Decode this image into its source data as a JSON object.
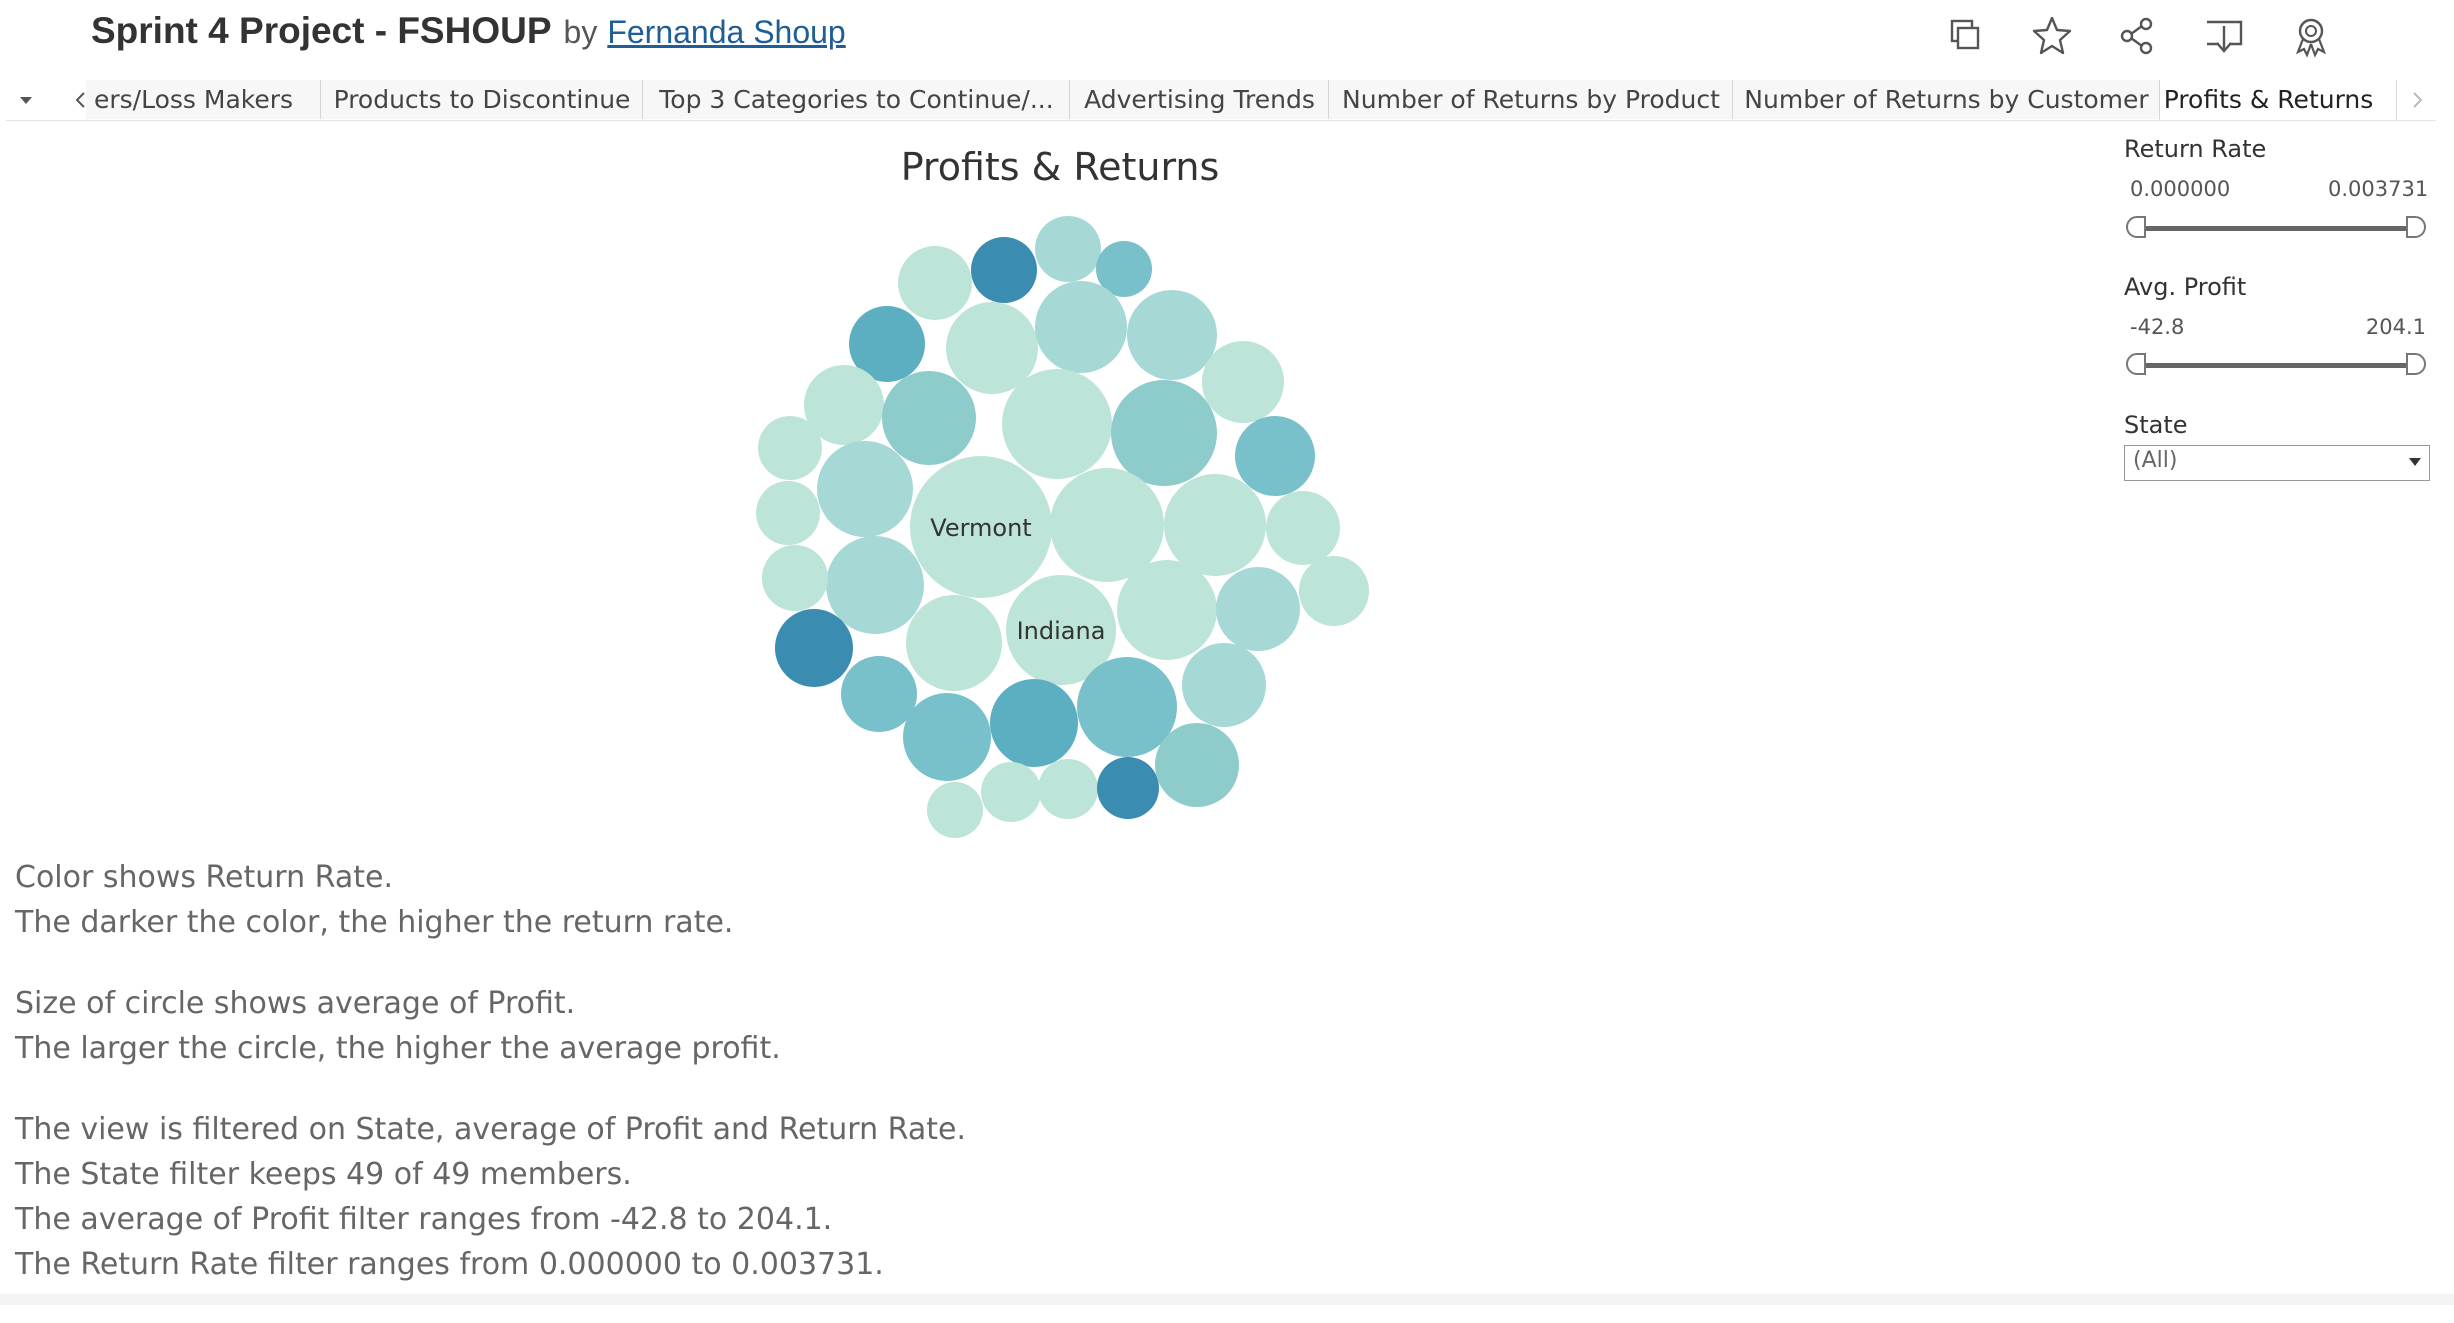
{
  "header": {
    "title": "Sprint 4 Project - FSHOUP",
    "by": "by",
    "author": "Fernanda Shoup",
    "icons": [
      "duplicate-icon",
      "favorite-star-icon",
      "share-icon",
      "download-icon",
      "badge-icon"
    ]
  },
  "tabs": {
    "items": [
      {
        "label": "ers/Loss Makers"
      },
      {
        "label": "Products to Discontinue"
      },
      {
        "label": "Top 3 Categories to Continue/..."
      },
      {
        "label": "Advertising Trends"
      },
      {
        "label": "Number of Returns by Product"
      },
      {
        "label": "Number of Returns by Customer"
      },
      {
        "label": "Profits & Returns",
        "active": true
      }
    ]
  },
  "chart": {
    "title": "Profits & Returns",
    "labels": [
      "Vermont",
      "Indiana"
    ],
    "palette": {
      "light": "#bde4d8",
      "mid": "#8ecbcb",
      "dark": "#3a8db0"
    }
  },
  "chart_data": {
    "type": "bubble",
    "title": "Profits & Returns",
    "size_measure": "Avg. Profit",
    "color_measure": "Return Rate",
    "dimension": "State",
    "visible_labels": [
      "Vermont",
      "Indiana"
    ],
    "member_count": 49,
    "color_range": [
      0.0,
      0.003731
    ],
    "size_range": [
      -42.8,
      204.1
    ]
  },
  "filters": {
    "return_rate": {
      "label": "Return Rate",
      "min": "0.000000",
      "max": "0.003731"
    },
    "avg_profit": {
      "label": "Avg. Profit",
      "min": "-42.8",
      "max": "204.1"
    },
    "state": {
      "label": "State",
      "value": "(All)"
    }
  },
  "caption": {
    "lines1": [
      "Color shows Return Rate.",
      "The darker the color, the higher the return rate."
    ],
    "lines2": [
      "Size of circle shows average of Profit.",
      "The larger the circle, the higher the average profit."
    ],
    "lines3": [
      "The view is filtered on State, average of Profit and Return Rate.",
      "The State filter keeps 49 of 49 members.",
      "The average of Profit filter ranges from -42.8 to 204.1.",
      "The Return Rate filter ranges from 0.000000 to 0.003731."
    ]
  }
}
